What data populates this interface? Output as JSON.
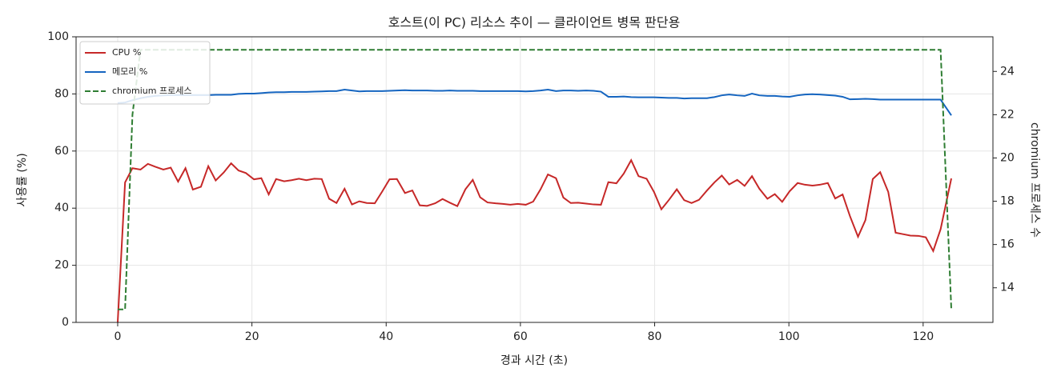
{
  "chart_data": {
    "type": "line",
    "title": "호스트(이 PC) 리소스 추이 — 클라이언트 병목 판단용",
    "xlabel": "경과 시간 (초)",
    "ylabel": "사용률 (%)",
    "y2label": "chromium 프로세스 수",
    "grid": true,
    "legend": "upper left",
    "xlim": [
      -6.2,
      130.4
    ],
    "xticks": [
      0,
      20,
      40,
      60,
      80,
      100,
      120
    ],
    "ylim": [
      0,
      100
    ],
    "yticks": [
      0,
      20,
      40,
      60,
      80,
      100
    ],
    "y2lim": [
      12.4,
      25.6
    ],
    "y2ticks": [
      14,
      16,
      18,
      20,
      22,
      24
    ],
    "x": [
      0,
      1.1,
      2.2,
      3.4,
      4.5,
      5.6,
      6.8,
      7.9,
      9.0,
      10.1,
      11.2,
      12.4,
      13.5,
      14.6,
      15.8,
      16.9,
      18.0,
      19.1,
      20.3,
      21.4,
      22.5,
      23.6,
      24.8,
      25.9,
      27.0,
      28.1,
      29.3,
      30.4,
      31.5,
      32.6,
      33.8,
      34.9,
      36.0,
      37.1,
      38.3,
      39.4,
      40.5,
      41.6,
      42.8,
      43.9,
      45.0,
      46.1,
      47.3,
      48.4,
      49.5,
      50.6,
      51.8,
      52.9,
      54.0,
      55.1,
      56.3,
      57.4,
      58.5,
      59.6,
      60.8,
      61.9,
      63.0,
      64.1,
      65.3,
      66.4,
      67.5,
      68.6,
      69.8,
      70.9,
      72.0,
      73.1,
      74.3,
      75.4,
      76.5,
      77.6,
      78.8,
      79.9,
      81.0,
      82.1,
      83.3,
      84.4,
      85.5,
      86.6,
      87.8,
      88.9,
      90.0,
      91.1,
      92.3,
      93.4,
      94.5,
      95.6,
      96.8,
      97.9,
      99.0,
      100.1,
      101.3,
      102.4,
      103.5,
      104.6,
      105.8,
      106.9,
      108.0,
      109.1,
      110.3,
      111.4,
      112.5,
      113.6,
      114.8,
      115.9,
      117.0,
      118.1,
      119.3,
      120.4,
      121.5,
      122.6,
      124.2
    ],
    "series": [
      {
        "name": "CPU %",
        "color": "#c62828",
        "linestyle": "solid",
        "axis": "y",
        "values": [
          0,
          49,
          54,
          53.5,
          55.5,
          54.5,
          53.5,
          54.2,
          49.3,
          54,
          46.5,
          47.5,
          54.7,
          49.7,
          52.5,
          55.7,
          53.2,
          52.3,
          50.1,
          50.5,
          44.8,
          50.2,
          49.4,
          49.8,
          50.3,
          49.8,
          50.3,
          50.2,
          43.3,
          41.8,
          46.8,
          41.3,
          42.4,
          41.8,
          41.7,
          45.8,
          50.1,
          50.2,
          45.3,
          46.2,
          41.0,
          40.8,
          41.7,
          43.2,
          41.9,
          40.7,
          46.6,
          49.9,
          43.8,
          42.0,
          41.7,
          41.5,
          41.2,
          41.5,
          41.2,
          42.3,
          46.6,
          51.8,
          50.5,
          43.7,
          41.8,
          41.9,
          41.6,
          41.3,
          41.2,
          49.1,
          48.7,
          52.1,
          56.8,
          51.2,
          50.3,
          45.7,
          39.6,
          42.8,
          46.6,
          42.8,
          41.8,
          42.9,
          46.2,
          49.0,
          51.4,
          48.3,
          49.9,
          47.8,
          51.2,
          46.8,
          43.3,
          44.9,
          42.2,
          45.9,
          48.8,
          48.2,
          47.9,
          48.2,
          48.8,
          43.4,
          44.8,
          37.2,
          30.0,
          35.8,
          50.2,
          52.6,
          45.7,
          31.4,
          30.9,
          30.4,
          30.3,
          29.8,
          25.0,
          32.6,
          50.4
        ]
      },
      {
        "name": "메모리 %",
        "color": "#1565c0",
        "linestyle": "solid",
        "axis": "y",
        "values": [
          76.8,
          77.0,
          77.8,
          78.5,
          79.0,
          79.3,
          79.5,
          79.6,
          79.6,
          79.6,
          79.6,
          79.6,
          79.6,
          79.7,
          79.7,
          79.7,
          80.0,
          80.1,
          80.1,
          80.3,
          80.5,
          80.6,
          80.6,
          80.7,
          80.7,
          80.7,
          80.8,
          80.9,
          81.0,
          81.0,
          81.5,
          81.2,
          80.9,
          81.0,
          81.0,
          81.0,
          81.1,
          81.2,
          81.3,
          81.2,
          81.2,
          81.2,
          81.1,
          81.1,
          81.2,
          81.1,
          81.1,
          81.1,
          81.0,
          81.0,
          81.0,
          81.0,
          81.0,
          81.0,
          80.9,
          81.0,
          81.2,
          81.5,
          81.0,
          81.2,
          81.2,
          81.1,
          81.2,
          81.1,
          80.8,
          79.0,
          79.0,
          79.1,
          78.9,
          78.8,
          78.8,
          78.8,
          78.7,
          78.6,
          78.6,
          78.4,
          78.5,
          78.5,
          78.5,
          78.9,
          79.5,
          79.8,
          79.5,
          79.3,
          80.1,
          79.5,
          79.3,
          79.3,
          79.1,
          79.0,
          79.5,
          79.8,
          79.9,
          79.8,
          79.6,
          79.4,
          79.0,
          78.1,
          78.2,
          78.3,
          78.2,
          78.0,
          78.0,
          78.0,
          78.0,
          78.0,
          78.0,
          78.0,
          78.0,
          78.0,
          72.5
        ]
      },
      {
        "name": "chromium 프로세스",
        "color": "#2e7d32",
        "linestyle": "dashed",
        "axis": "y2",
        "values": [
          13,
          13,
          22,
          25,
          25,
          25,
          25,
          25,
          25,
          25,
          25,
          25,
          25,
          25,
          25,
          25,
          25,
          25,
          25,
          25,
          25,
          25,
          25,
          25,
          25,
          25,
          25,
          25,
          25,
          25,
          25,
          25,
          25,
          25,
          25,
          25,
          25,
          25,
          25,
          25,
          25,
          25,
          25,
          25,
          25,
          25,
          25,
          25,
          25,
          25,
          25,
          25,
          25,
          25,
          25,
          25,
          25,
          25,
          25,
          25,
          25,
          25,
          25,
          25,
          25,
          25,
          25,
          25,
          25,
          25,
          25,
          25,
          25,
          25,
          25,
          25,
          25,
          25,
          25,
          25,
          25,
          25,
          25,
          25,
          25,
          25,
          25,
          25,
          25,
          25,
          25,
          25,
          25,
          25,
          25,
          25,
          25,
          25,
          25,
          25,
          25,
          25,
          25,
          25,
          25,
          25,
          25,
          25,
          25,
          25,
          13
        ]
      }
    ]
  }
}
